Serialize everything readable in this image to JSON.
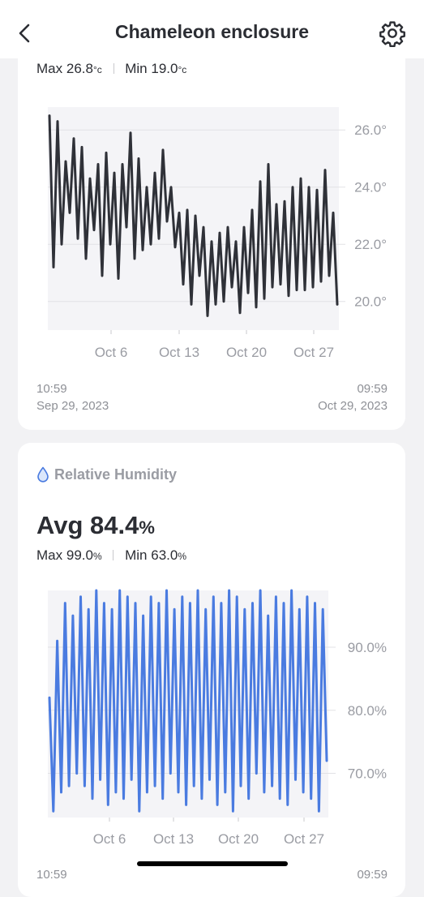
{
  "header": {
    "title": "Chameleon enclosure",
    "back_icon": "chevron-left-icon",
    "settings_icon": "gear-icon"
  },
  "temperature": {
    "max_label": "Max",
    "max_value": "26.8",
    "min_label": "Min",
    "min_value": "19.0",
    "unit": "°c",
    "range_start_time": "10:59",
    "range_start_date": "Sep 29, 2023",
    "range_end_time": "09:59",
    "range_end_date": "Oct 29, 2023"
  },
  "humidity": {
    "section_label": "Relative Humidity",
    "icon": "water-drop-icon",
    "avg_label": "Avg",
    "avg_value": "84.4",
    "unit": "%",
    "max_label": "Max",
    "max_value": "99.0",
    "min_label": "Min",
    "min_value": "63.0",
    "range_start_time": "10:59",
    "range_end_time": "09:59"
  },
  "colors": {
    "temperature_line": "#2f3138",
    "humidity_line": "#4a7be0",
    "plot_bg": "#f4f4f7",
    "grid": "#e2e2e6"
  },
  "chart_data": [
    {
      "type": "line",
      "title": "",
      "xlabel": "",
      "ylabel": "",
      "x_start": "Sep 29, 2023 10:59",
      "x_end": "Oct 29, 2023 09:59",
      "x_ticks": [
        "Oct 6",
        "Oct 13",
        "Oct 20",
        "Oct 27"
      ],
      "y_ticks": [
        "20.0°",
        "22.0°",
        "24.0°",
        "26.0°"
      ],
      "ylim": [
        19.0,
        26.8
      ],
      "grid": true,
      "series": [
        {
          "values": [
            26.5,
            21.2,
            26.3,
            22.0,
            24.9,
            23.1,
            25.7,
            22.2,
            25.4,
            21.5,
            24.3,
            22.5,
            24.8,
            20.9,
            25.2,
            22.0,
            24.5,
            20.8,
            24.8,
            22.6,
            25.9,
            21.5,
            25.0,
            21.8,
            24.0,
            22.0,
            24.5,
            22.2,
            25.3,
            22.8,
            24.0,
            21.9,
            23.1,
            20.6,
            23.2,
            19.9,
            23.0,
            20.9,
            22.6,
            19.5,
            22.1,
            19.9,
            22.4,
            20.0,
            22.6,
            20.5,
            22.1,
            19.6,
            22.6,
            20.3,
            23.2,
            19.8,
            24.2,
            20.1,
            24.8,
            20.5,
            23.4,
            20.6,
            23.5,
            20.2,
            24.0,
            20.4,
            24.3,
            20.4,
            24.0,
            20.5,
            23.9,
            20.7,
            24.6,
            20.9,
            23.1,
            19.9
          ]
        }
      ]
    },
    {
      "type": "line",
      "title": "",
      "xlabel": "",
      "ylabel": "",
      "x_start": "Sep 29, 2023 10:59",
      "x_end": "Oct 29, 2023 09:59",
      "x_ticks": [
        "Oct 6",
        "Oct 13",
        "Oct 20",
        "Oct 27"
      ],
      "y_ticks": [
        "70.0%",
        "80.0%",
        "90.0%"
      ],
      "ylim": [
        63.0,
        99.0
      ],
      "grid": true,
      "series": [
        {
          "values": [
            82,
            64,
            91,
            67,
            97,
            68,
            95,
            70,
            98,
            68,
            96,
            66,
            99,
            69,
            97,
            65,
            96,
            67,
            99,
            66,
            98,
            69,
            97,
            64,
            95,
            67,
            98,
            68,
            97,
            66,
            99,
            70,
            96,
            67,
            98,
            65,
            97,
            68,
            99,
            66,
            96,
            69,
            98,
            65,
            97,
            67,
            99,
            64,
            98,
            68,
            96,
            66,
            97,
            70,
            99,
            67,
            95,
            68,
            98,
            66,
            97,
            65,
            99,
            69,
            96,
            67,
            98,
            66,
            97,
            64,
            96,
            72
          ]
        }
      ]
    }
  ]
}
